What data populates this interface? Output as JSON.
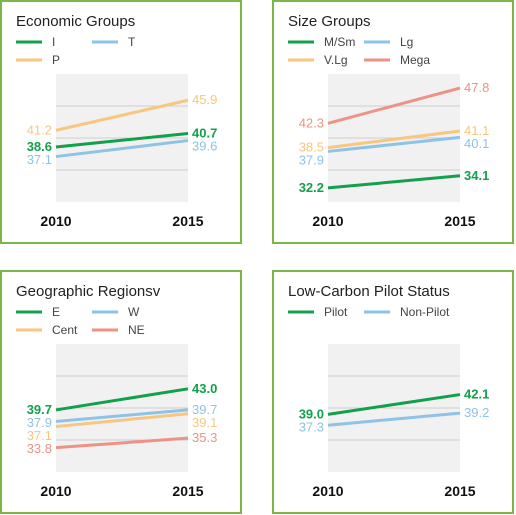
{
  "chart_data": [
    {
      "type": "line",
      "title": "Economic Groups",
      "x": [
        "2010",
        "2015"
      ],
      "ylim": [
        30,
        50
      ],
      "grid": true,
      "legend_placement": "top-left",
      "series": [
        {
          "name": "I",
          "values": [
            38.6,
            40.7
          ],
          "color": "#13a04a"
        },
        {
          "name": "T",
          "values": [
            37.1,
            39.6
          ],
          "color": "#8ec3e6"
        },
        {
          "name": "P",
          "values": [
            41.2,
            45.9
          ],
          "color": "#f7c67f"
        }
      ]
    },
    {
      "type": "line",
      "title": "Size Groups",
      "x": [
        "2010",
        "2015"
      ],
      "ylim": [
        30,
        50
      ],
      "grid": true,
      "legend_placement": "top-left",
      "series": [
        {
          "name": "M/Sm",
          "values": [
            32.2,
            34.1
          ],
          "color": "#13a04a"
        },
        {
          "name": "Lg",
          "values": [
            37.9,
            40.1
          ],
          "color": "#8ec3e6"
        },
        {
          "name": "V.Lg",
          "values": [
            38.5,
            41.1
          ],
          "color": "#f7c67f"
        },
        {
          "name": "Mega",
          "values": [
            42.3,
            47.8
          ],
          "color": "#ee9286"
        }
      ]
    },
    {
      "type": "line",
      "title": "Geographic Regionsv",
      "x": [
        "2010",
        "2015"
      ],
      "ylim": [
        30,
        50
      ],
      "grid": true,
      "legend_placement": "top-left",
      "series": [
        {
          "name": "E",
          "values": [
            39.7,
            43.0
          ],
          "color": "#13a04a"
        },
        {
          "name": "W",
          "values": [
            37.9,
            39.7
          ],
          "color": "#8ec3e6"
        },
        {
          "name": "Cent",
          "values": [
            37.1,
            39.1
          ],
          "color": "#f7c67f"
        },
        {
          "name": "NE",
          "values": [
            33.8,
            35.3
          ],
          "color": "#ee9286"
        }
      ]
    },
    {
      "type": "line",
      "title": "Low-Carbon Pilot Status",
      "x": [
        "2010",
        "2015"
      ],
      "ylim": [
        30,
        50
      ],
      "grid": true,
      "legend_placement": "top-left",
      "series": [
        {
          "name": "Pilot",
          "values": [
            39.0,
            42.1
          ],
          "color": "#13a04a"
        },
        {
          "name": "Non-Pilot",
          "values": [
            37.3,
            39.2
          ],
          "color": "#8ec3e6"
        }
      ]
    }
  ]
}
